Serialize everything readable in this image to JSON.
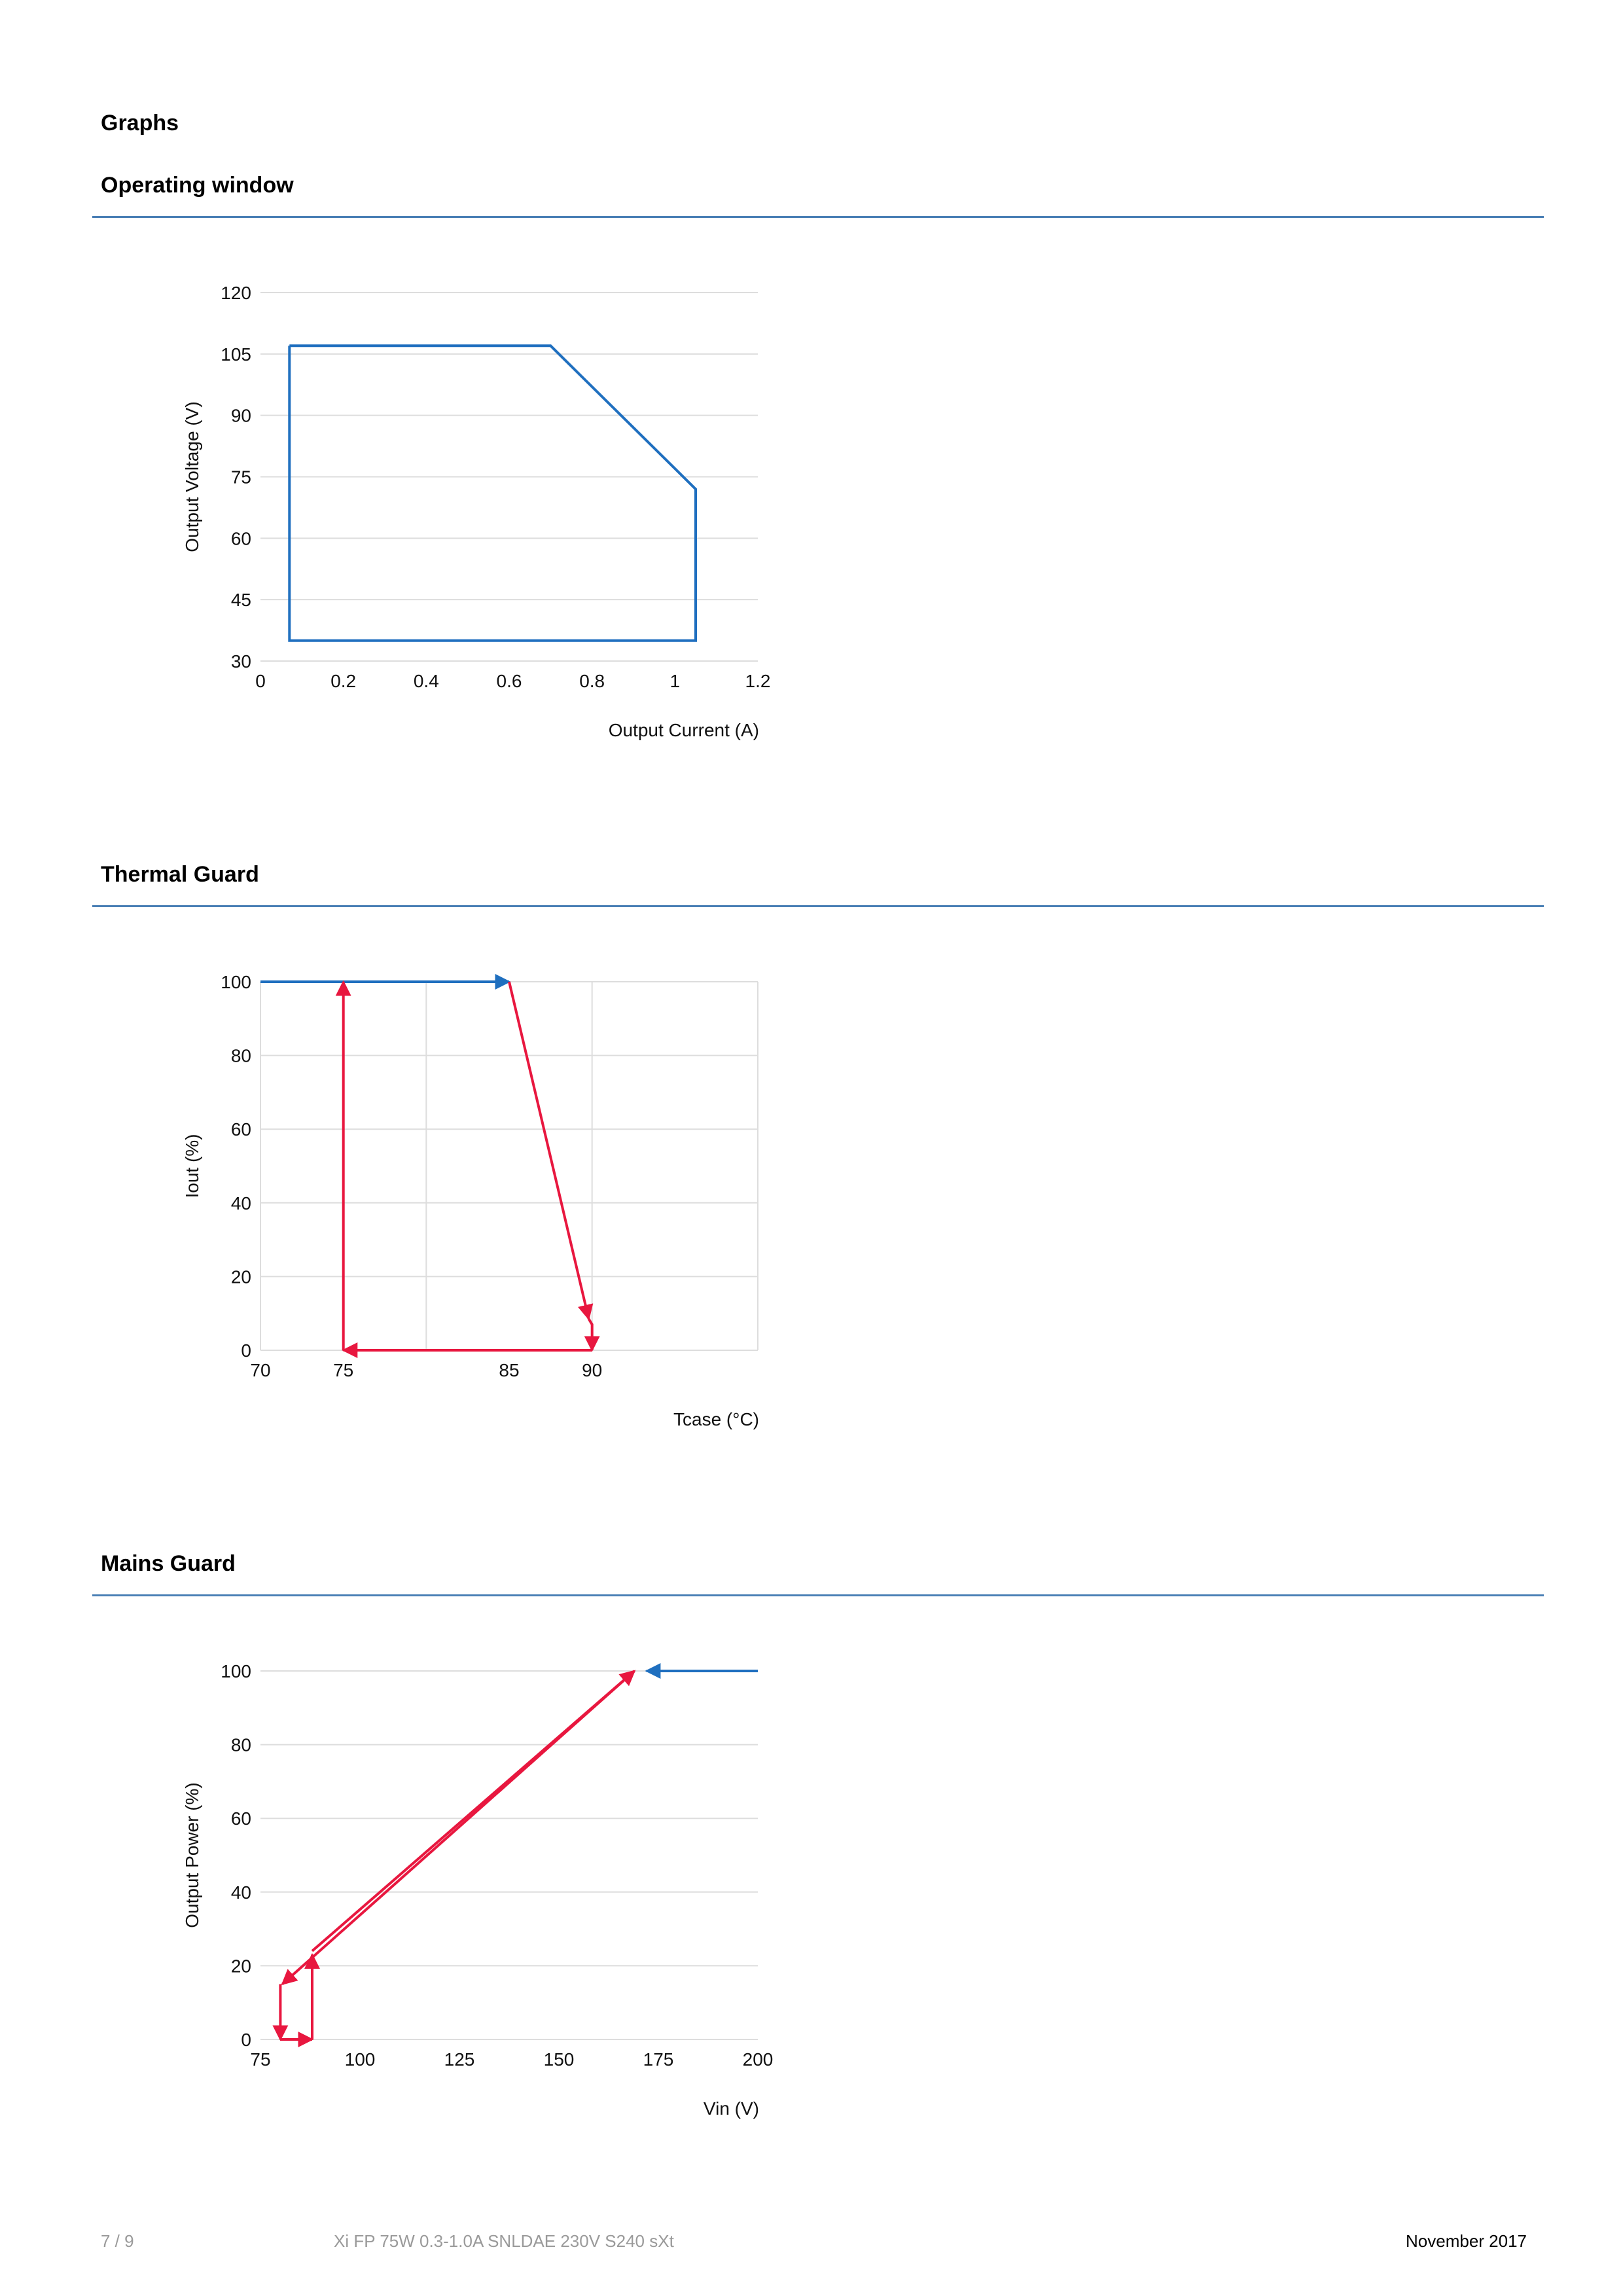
{
  "page": {
    "heading": "Graphs",
    "footer": {
      "page_number": "7 / 9",
      "product": "Xi FP 75W 0.3-1.0A SNLDAE 230V S240 sXt",
      "date": "November 2017"
    }
  },
  "colors": {
    "rule": "#4a7fb5",
    "blue": "#1f6fbf",
    "red": "#e8173f",
    "grid": "#dddddd"
  },
  "sections": [
    {
      "title": "Operating window"
    },
    {
      "title": "Thermal Guard"
    },
    {
      "title": "Mains Guard"
    }
  ],
  "chart_data": [
    {
      "type": "line",
      "title": "Operating window",
      "xlabel": "Output Current (A)",
      "ylabel": "Output Voltage (V)",
      "xlim": [
        0,
        1.2
      ],
      "ylim": [
        30,
        120
      ],
      "xticks": [
        0,
        0.2,
        0.4,
        0.6,
        0.8,
        1,
        1.2
      ],
      "xtick_labels": [
        "0",
        "0.2",
        "0.4",
        "0.6",
        "0.8",
        "1",
        "1.2"
      ],
      "yticks": [
        30,
        45,
        60,
        75,
        90,
        105,
        120
      ],
      "ytick_labels": [
        "30",
        "45",
        "60",
        "75",
        "90",
        "105",
        "120"
      ],
      "grid": {
        "x": false,
        "y": true
      },
      "series": [
        {
          "color": "blue",
          "x": [
            0.07,
            0.7,
            1.05,
            1.05,
            0.07,
            0.07
          ],
          "y": [
            107,
            107,
            72,
            35,
            35,
            107
          ]
        }
      ]
    },
    {
      "type": "line",
      "title": "Thermal Guard",
      "xlabel": "Tcase (°C)",
      "ylabel": "Iout (%)",
      "xlim": [
        70,
        100
      ],
      "ylim": [
        0,
        100
      ],
      "xticks": [
        70,
        75,
        85,
        90
      ],
      "xtick_labels": [
        "70",
        "75",
        "85",
        "90"
      ],
      "yticks": [
        0,
        20,
        40,
        60,
        80,
        100
      ],
      "ytick_labels": [
        "0",
        "20",
        "40",
        "60",
        "80",
        "100"
      ],
      "xgrid": [
        70,
        80,
        90,
        100
      ],
      "grid": {
        "x": true,
        "y": true
      },
      "series": [
        {
          "color": "blue",
          "arrow": true,
          "x": [
            70,
            85
          ],
          "y": [
            100,
            100
          ]
        },
        {
          "color": "red",
          "arrow": true,
          "x": [
            85,
            89.8
          ],
          "y": [
            100,
            8.5
          ]
        },
        {
          "color": "red",
          "arrow": true,
          "x": [
            89.8,
            90,
            90
          ],
          "y": [
            8.5,
            7,
            0
          ]
        },
        {
          "color": "red",
          "arrow": true,
          "x": [
            90,
            75
          ],
          "y": [
            0,
            0
          ]
        },
        {
          "color": "red",
          "arrow": true,
          "x": [
            75,
            75
          ],
          "y": [
            0,
            100
          ]
        }
      ]
    },
    {
      "type": "line",
      "title": "Mains Guard",
      "xlabel": "Vin (V)",
      "ylabel": "Output Power (%)",
      "xlim": [
        75,
        200
      ],
      "ylim": [
        0,
        100
      ],
      "xticks": [
        75,
        100,
        125,
        150,
        175,
        200
      ],
      "xtick_labels": [
        "75",
        "100",
        "125",
        "150",
        "175",
        "200"
      ],
      "yticks": [
        0,
        20,
        40,
        60,
        80,
        100
      ],
      "ytick_labels": [
        "0",
        "20",
        "40",
        "60",
        "80",
        "100"
      ],
      "grid": {
        "x": false,
        "y": true
      },
      "series": [
        {
          "color": "blue",
          "arrow": true,
          "x": [
            200,
            172
          ],
          "y": [
            100,
            100
          ]
        },
        {
          "color": "red",
          "arrow": true,
          "x": [
            169,
            80.5
          ],
          "y": [
            100,
            15
          ]
        },
        {
          "color": "red",
          "arrow": true,
          "x": [
            80,
            80
          ],
          "y": [
            15,
            0
          ]
        },
        {
          "color": "red",
          "arrow": true,
          "x": [
            80,
            88
          ],
          "y": [
            0,
            0
          ]
        },
        {
          "color": "red",
          "arrow": true,
          "x": [
            88,
            88
          ],
          "y": [
            0,
            23
          ]
        },
        {
          "color": "red",
          "arrow": true,
          "x": [
            88,
            169
          ],
          "y": [
            24,
            100
          ]
        }
      ]
    }
  ]
}
